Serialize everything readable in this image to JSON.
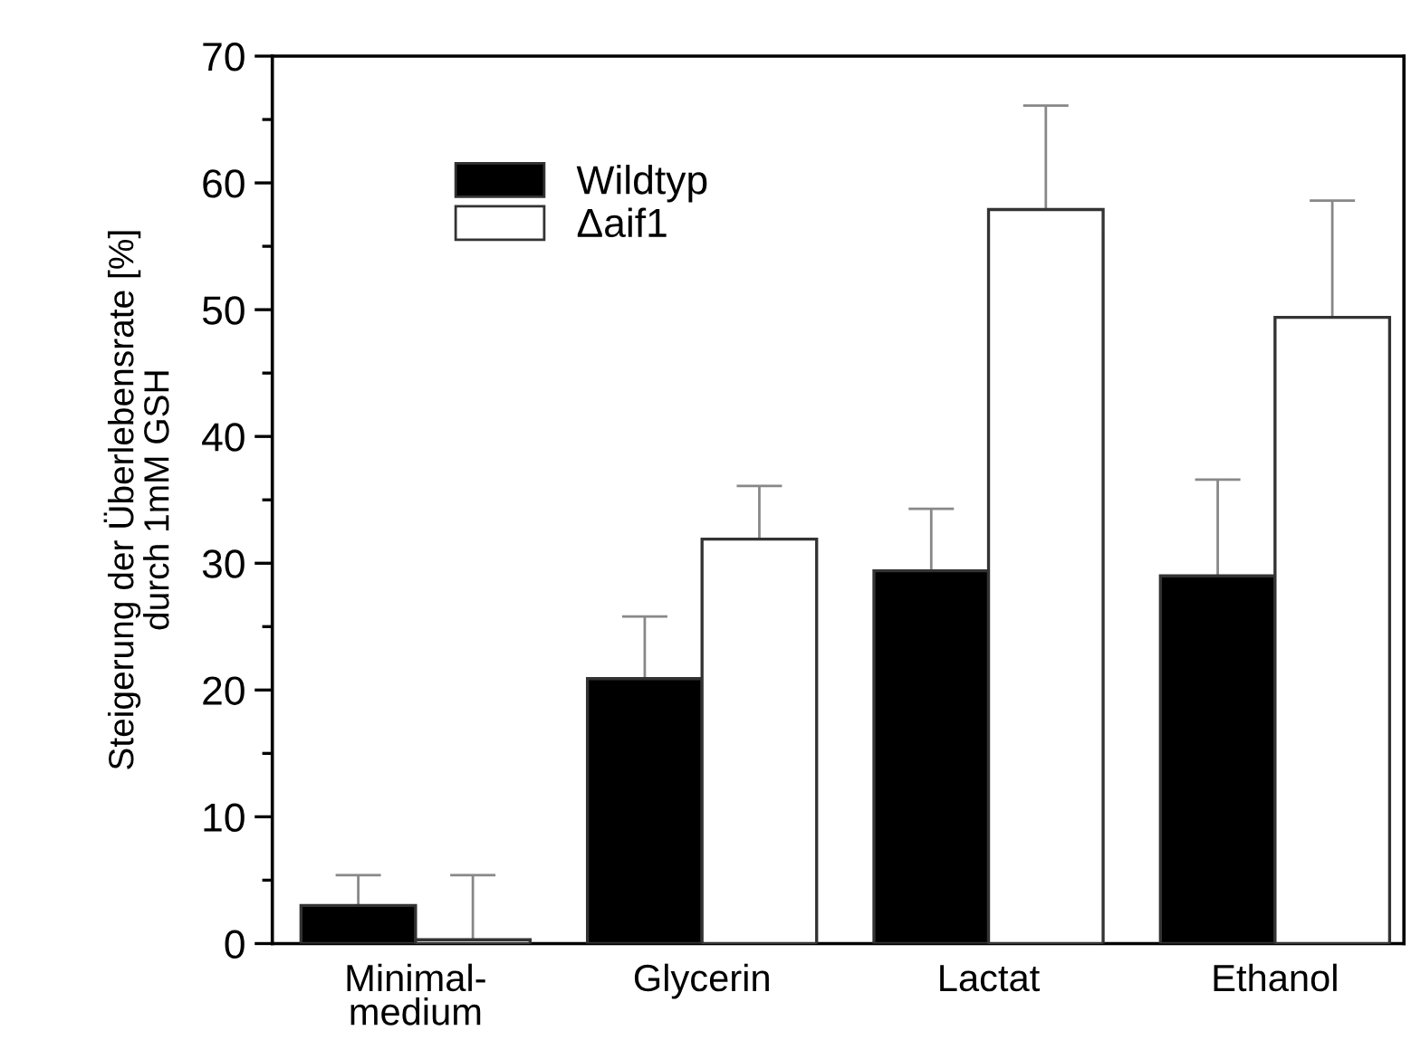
{
  "chart_data": {
    "type": "bar",
    "ylabel": "Steigerung der Überlebensrate [%]\ndurch 1mM GSH",
    "categories": [
      "Minimal-\nmedium",
      "Glycerin",
      "Lactat",
      "Ethanol"
    ],
    "series": [
      {
        "name": "Wildtyp",
        "color": "#000000",
        "values": [
          3.0,
          20.9,
          29.4,
          29.0
        ],
        "errors": [
          [
            3.0,
            5.4
          ],
          [
            20.9,
            25.8
          ],
          [
            29.4,
            34.3
          ],
          [
            29.0,
            36.6
          ]
        ]
      },
      {
        "name": "Δaif1",
        "color": "#ffffff",
        "values": [
          0.3,
          31.9,
          57.9,
          49.4
        ],
        "errors": [
          [
            0.3,
            5.4
          ],
          [
            31.9,
            36.1
          ],
          [
            57.9,
            66.1
          ],
          [
            49.4,
            58.6
          ]
        ]
      }
    ],
    "ylim": [
      0,
      70
    ],
    "yticks": [
      0,
      10,
      20,
      30,
      40,
      50,
      60,
      70
    ],
    "grid": false,
    "legend": "top left"
  }
}
